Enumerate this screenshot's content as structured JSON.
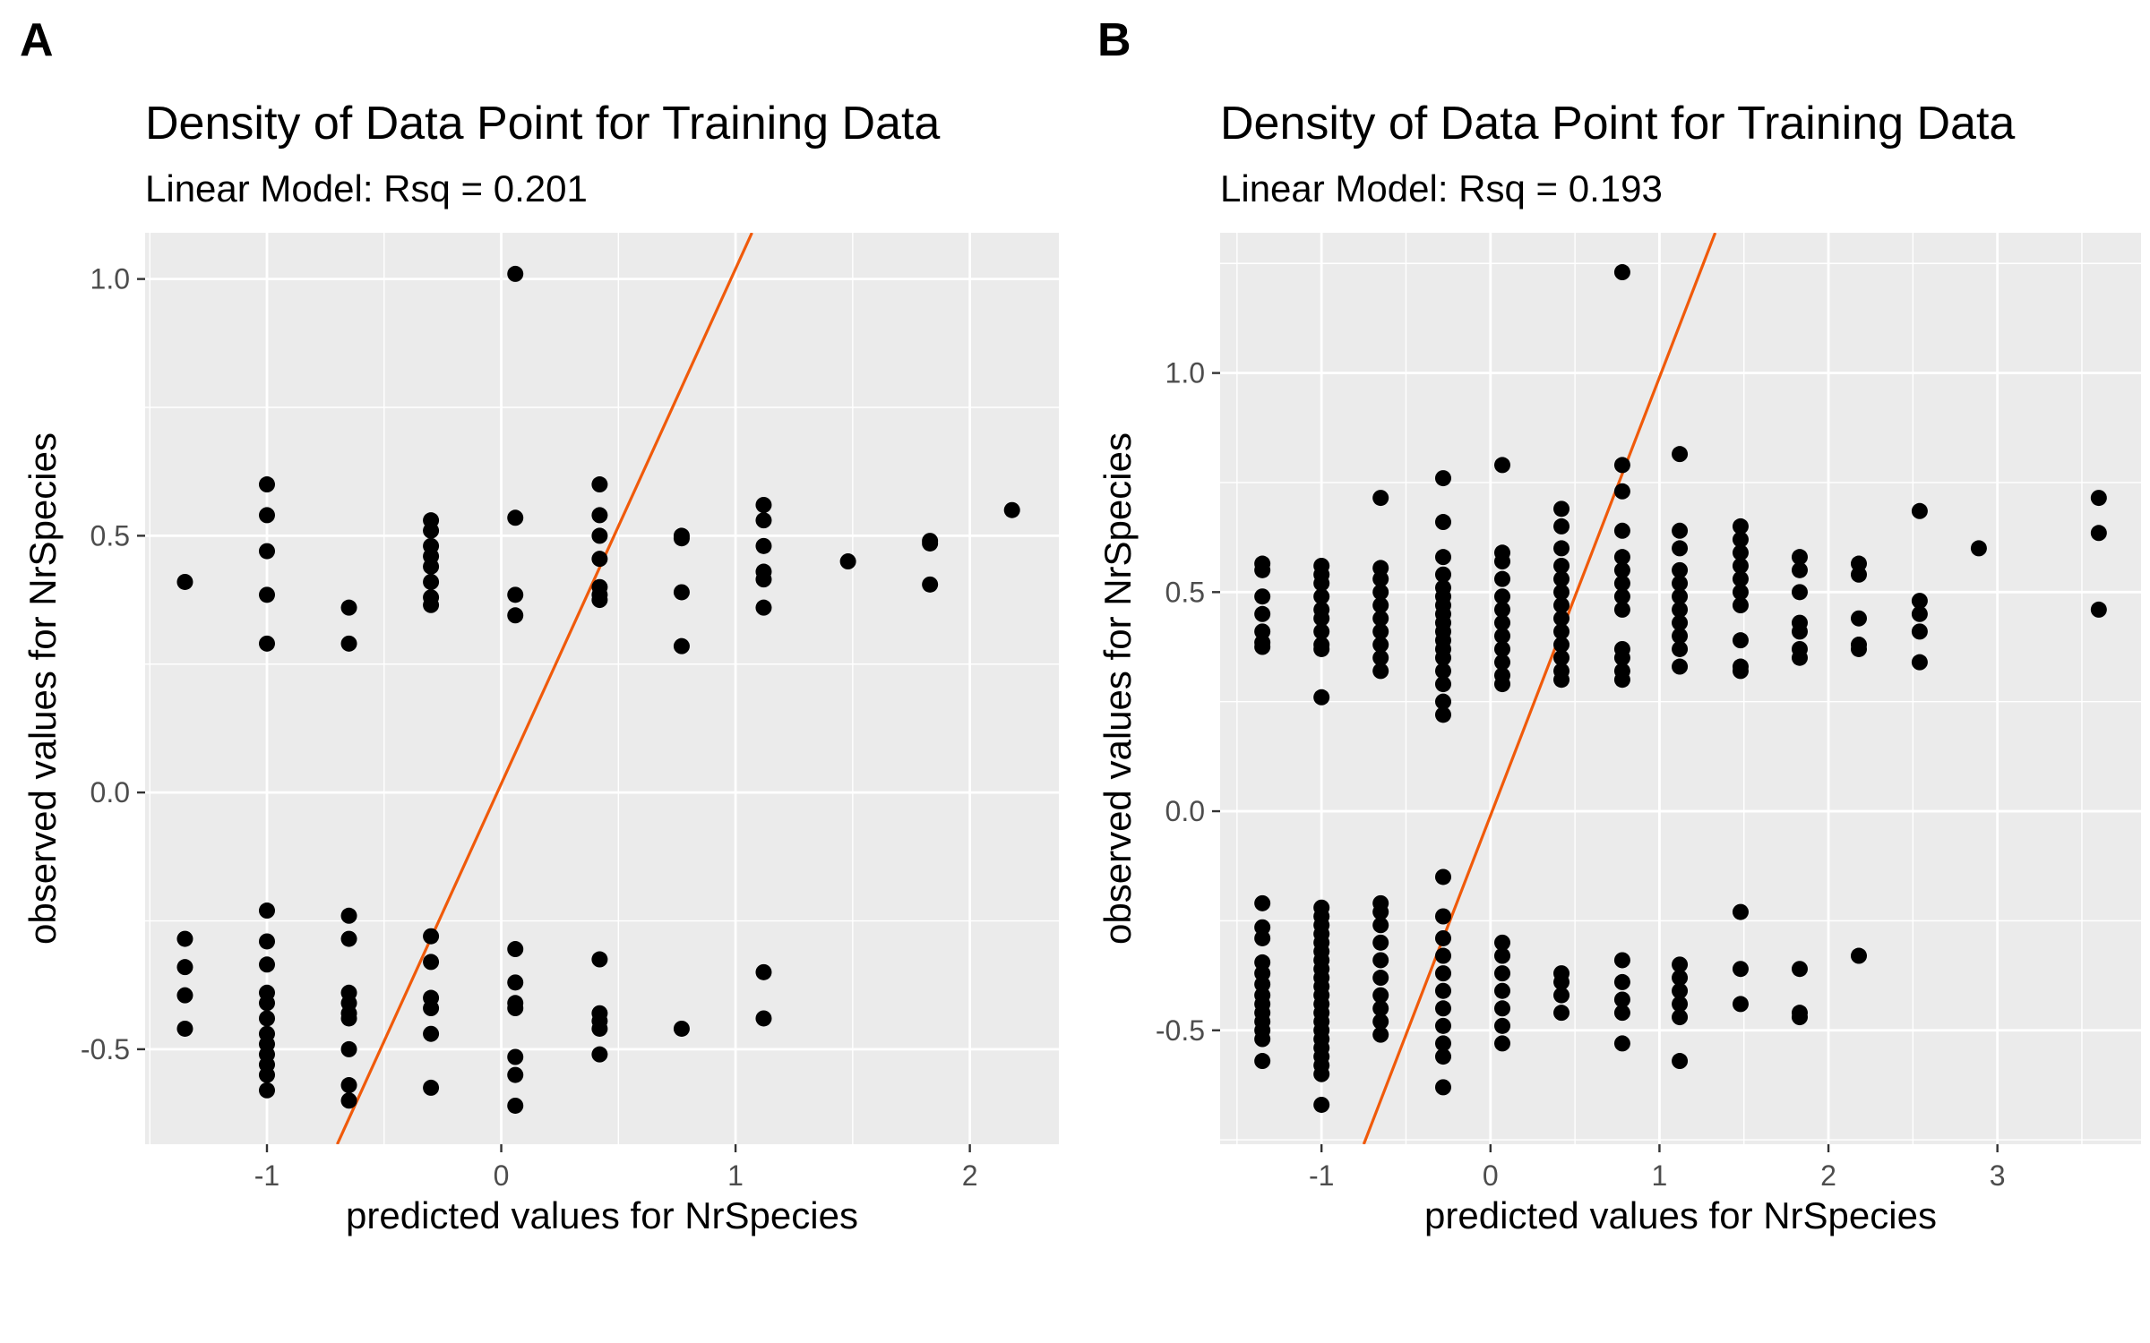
{
  "chart_data": [
    {
      "panel": "A",
      "type": "scatter",
      "title": "Density of Data Point for Training Data",
      "subtitle": "Linear Model: Rsq = 0.201",
      "xlabel": "predicted values for NrSpecies",
      "ylabel": "observed values for NrSpecies",
      "xlim": [
        -1.52,
        2.38
      ],
      "ylim": [
        -0.685,
        1.09
      ],
      "x_ticks": [
        -1,
        0,
        1,
        2
      ],
      "x_tick_labels": [
        "-1",
        "0",
        "1",
        "2"
      ],
      "y_ticks": [
        -0.5,
        0.0,
        0.5,
        1.0
      ],
      "y_tick_labels": [
        "-0.5",
        "0.0",
        "0.5",
        "1.0"
      ],
      "grid": true,
      "fit_line": {
        "color": "#f05a0a",
        "points": [
          [
            -0.7,
            -0.685
          ],
          [
            1.07,
            1.09
          ]
        ]
      },
      "points": [
        [
          -1.35,
          0.41
        ],
        [
          -1.35,
          -0.285
        ],
        [
          -1.35,
          -0.34
        ],
        [
          -1.35,
          -0.395
        ],
        [
          -1.35,
          -0.46
        ],
        [
          -1.0,
          0.6
        ],
        [
          -1.0,
          0.54
        ],
        [
          -1.0,
          0.47
        ],
        [
          -1.0,
          0.385
        ],
        [
          -1.0,
          0.29
        ],
        [
          -1.0,
          -0.23
        ],
        [
          -1.0,
          -0.29
        ],
        [
          -1.0,
          -0.335
        ],
        [
          -1.0,
          -0.39
        ],
        [
          -1.0,
          -0.41
        ],
        [
          -1.0,
          -0.44
        ],
        [
          -1.0,
          -0.47
        ],
        [
          -1.0,
          -0.49
        ],
        [
          -1.0,
          -0.51
        ],
        [
          -1.0,
          -0.53
        ],
        [
          -1.0,
          -0.55
        ],
        [
          -1.0,
          -0.58
        ],
        [
          -0.65,
          0.36
        ],
        [
          -0.65,
          0.29
        ],
        [
          -0.65,
          -0.24
        ],
        [
          -0.65,
          -0.285
        ],
        [
          -0.65,
          -0.39
        ],
        [
          -0.65,
          -0.41
        ],
        [
          -0.65,
          -0.43
        ],
        [
          -0.65,
          -0.44
        ],
        [
          -0.65,
          -0.5
        ],
        [
          -0.65,
          -0.57
        ],
        [
          -0.65,
          -0.6
        ],
        [
          -0.3,
          0.53
        ],
        [
          -0.3,
          0.51
        ],
        [
          -0.3,
          0.48
        ],
        [
          -0.3,
          0.46
        ],
        [
          -0.3,
          0.44
        ],
        [
          -0.3,
          0.41
        ],
        [
          -0.3,
          0.38
        ],
        [
          -0.3,
          0.365
        ],
        [
          -0.3,
          -0.28
        ],
        [
          -0.3,
          -0.33
        ],
        [
          -0.3,
          -0.4
        ],
        [
          -0.3,
          -0.42
        ],
        [
          -0.3,
          -0.47
        ],
        [
          -0.3,
          -0.575
        ],
        [
          0.06,
          1.01
        ],
        [
          0.06,
          0.535
        ],
        [
          0.06,
          0.385
        ],
        [
          0.06,
          0.345
        ],
        [
          0.06,
          -0.305
        ],
        [
          0.06,
          -0.37
        ],
        [
          0.06,
          -0.41
        ],
        [
          0.06,
          -0.42
        ],
        [
          0.06,
          -0.515
        ],
        [
          0.06,
          -0.55
        ],
        [
          0.06,
          -0.61
        ],
        [
          0.42,
          0.6
        ],
        [
          0.42,
          0.54
        ],
        [
          0.42,
          0.5
        ],
        [
          0.42,
          0.455
        ],
        [
          0.42,
          0.4
        ],
        [
          0.42,
          0.385
        ],
        [
          0.42,
          0.375
        ],
        [
          0.42,
          -0.325
        ],
        [
          0.42,
          -0.43
        ],
        [
          0.42,
          -0.445
        ],
        [
          0.42,
          -0.46
        ],
        [
          0.42,
          -0.51
        ],
        [
          0.77,
          0.5
        ],
        [
          0.77,
          0.495
        ],
        [
          0.77,
          0.39
        ],
        [
          0.77,
          0.285
        ],
        [
          0.77,
          -0.46
        ],
        [
          1.12,
          0.56
        ],
        [
          1.12,
          0.53
        ],
        [
          1.12,
          0.48
        ],
        [
          1.12,
          0.43
        ],
        [
          1.12,
          0.415
        ],
        [
          1.12,
          0.36
        ],
        [
          1.12,
          -0.35
        ],
        [
          1.12,
          -0.44
        ],
        [
          1.48,
          0.45
        ],
        [
          1.83,
          0.49
        ],
        [
          1.83,
          0.485
        ],
        [
          1.83,
          0.405
        ],
        [
          2.18,
          0.55
        ]
      ]
    },
    {
      "panel": "B",
      "type": "scatter",
      "title": "Density of Data Point for Training Data",
      "subtitle": "Linear Model: Rsq = 0.193",
      "xlabel": "predicted values for NrSpecies",
      "ylabel": "observed values for NrSpecies",
      "xlim": [
        -1.6,
        3.85
      ],
      "ylim": [
        -0.76,
        1.32
      ],
      "x_ticks": [
        -1,
        0,
        1,
        2,
        3
      ],
      "x_tick_labels": [
        "-1",
        "0",
        "1",
        "2",
        "3"
      ],
      "y_ticks": [
        -0.5,
        0.0,
        0.5,
        1.0
      ],
      "y_tick_labels": [
        "-0.5",
        "0.0",
        "0.5",
        "1.0"
      ],
      "grid": true,
      "fit_line": {
        "color": "#f05a0a",
        "points": [
          [
            -0.75,
            -0.76
          ],
          [
            1.33,
            1.32
          ]
        ]
      },
      "points": [
        [
          -1.35,
          0.565
        ],
        [
          -1.35,
          0.55
        ],
        [
          -1.35,
          0.49
        ],
        [
          -1.35,
          0.45
        ],
        [
          -1.35,
          0.41
        ],
        [
          -1.35,
          0.385
        ],
        [
          -1.35,
          0.375
        ],
        [
          -1.35,
          -0.21
        ],
        [
          -1.35,
          -0.265
        ],
        [
          -1.35,
          -0.29
        ],
        [
          -1.35,
          -0.345
        ],
        [
          -1.35,
          -0.37
        ],
        [
          -1.35,
          -0.395
        ],
        [
          -1.35,
          -0.42
        ],
        [
          -1.35,
          -0.44
        ],
        [
          -1.35,
          -0.46
        ],
        [
          -1.35,
          -0.48
        ],
        [
          -1.35,
          -0.5
        ],
        [
          -1.35,
          -0.52
        ],
        [
          -1.35,
          -0.57
        ],
        [
          -1.0,
          0.56
        ],
        [
          -1.0,
          0.54
        ],
        [
          -1.0,
          0.52
        ],
        [
          -1.0,
          0.49
        ],
        [
          -1.0,
          0.46
        ],
        [
          -1.0,
          0.44
        ],
        [
          -1.0,
          0.41
        ],
        [
          -1.0,
          0.38
        ],
        [
          -1.0,
          0.37
        ],
        [
          -1.0,
          0.26
        ],
        [
          -1.0,
          -0.22
        ],
        [
          -1.0,
          -0.24
        ],
        [
          -1.0,
          -0.26
        ],
        [
          -1.0,
          -0.28
        ],
        [
          -1.0,
          -0.3
        ],
        [
          -1.0,
          -0.32
        ],
        [
          -1.0,
          -0.34
        ],
        [
          -1.0,
          -0.36
        ],
        [
          -1.0,
          -0.38
        ],
        [
          -1.0,
          -0.4
        ],
        [
          -1.0,
          -0.42
        ],
        [
          -1.0,
          -0.44
        ],
        [
          -1.0,
          -0.46
        ],
        [
          -1.0,
          -0.48
        ],
        [
          -1.0,
          -0.5
        ],
        [
          -1.0,
          -0.52
        ],
        [
          -1.0,
          -0.54
        ],
        [
          -1.0,
          -0.56
        ],
        [
          -1.0,
          -0.58
        ],
        [
          -1.0,
          -0.6
        ],
        [
          -1.0,
          -0.67
        ],
        [
          -0.65,
          0.715
        ],
        [
          -0.65,
          0.555
        ],
        [
          -0.65,
          0.53
        ],
        [
          -0.65,
          0.5
        ],
        [
          -0.65,
          0.47
        ],
        [
          -0.65,
          0.44
        ],
        [
          -0.65,
          0.41
        ],
        [
          -0.65,
          0.38
        ],
        [
          -0.65,
          0.35
        ],
        [
          -0.65,
          0.32
        ],
        [
          -0.65,
          -0.21
        ],
        [
          -0.65,
          -0.23
        ],
        [
          -0.65,
          -0.26
        ],
        [
          -0.65,
          -0.3
        ],
        [
          -0.65,
          -0.34
        ],
        [
          -0.65,
          -0.38
        ],
        [
          -0.65,
          -0.42
        ],
        [
          -0.65,
          -0.45
        ],
        [
          -0.65,
          -0.48
        ],
        [
          -0.65,
          -0.51
        ],
        [
          -0.28,
          0.76
        ],
        [
          -0.28,
          0.66
        ],
        [
          -0.28,
          0.58
        ],
        [
          -0.28,
          0.54
        ],
        [
          -0.28,
          0.51
        ],
        [
          -0.28,
          0.49
        ],
        [
          -0.28,
          0.47
        ],
        [
          -0.28,
          0.45
        ],
        [
          -0.28,
          0.43
        ],
        [
          -0.28,
          0.41
        ],
        [
          -0.28,
          0.39
        ],
        [
          -0.28,
          0.37
        ],
        [
          -0.28,
          0.35
        ],
        [
          -0.28,
          0.32
        ],
        [
          -0.28,
          0.29
        ],
        [
          -0.28,
          0.25
        ],
        [
          -0.28,
          0.22
        ],
        [
          -0.28,
          -0.15
        ],
        [
          -0.28,
          -0.24
        ],
        [
          -0.28,
          -0.29
        ],
        [
          -0.28,
          -0.33
        ],
        [
          -0.28,
          -0.37
        ],
        [
          -0.28,
          -0.41
        ],
        [
          -0.28,
          -0.45
        ],
        [
          -0.28,
          -0.49
        ],
        [
          -0.28,
          -0.53
        ],
        [
          -0.28,
          -0.56
        ],
        [
          -0.28,
          -0.63
        ],
        [
          0.07,
          0.79
        ],
        [
          0.07,
          0.59
        ],
        [
          0.07,
          0.57
        ],
        [
          0.07,
          0.53
        ],
        [
          0.07,
          0.49
        ],
        [
          0.07,
          0.46
        ],
        [
          0.07,
          0.43
        ],
        [
          0.07,
          0.4
        ],
        [
          0.07,
          0.37
        ],
        [
          0.07,
          0.34
        ],
        [
          0.07,
          0.31
        ],
        [
          0.07,
          0.29
        ],
        [
          0.07,
          -0.3
        ],
        [
          0.07,
          -0.33
        ],
        [
          0.07,
          -0.37
        ],
        [
          0.07,
          -0.41
        ],
        [
          0.07,
          -0.45
        ],
        [
          0.07,
          -0.49
        ],
        [
          0.07,
          -0.53
        ],
        [
          0.42,
          0.69
        ],
        [
          0.42,
          0.65
        ],
        [
          0.42,
          0.6
        ],
        [
          0.42,
          0.56
        ],
        [
          0.42,
          0.53
        ],
        [
          0.42,
          0.5
        ],
        [
          0.42,
          0.47
        ],
        [
          0.42,
          0.44
        ],
        [
          0.42,
          0.41
        ],
        [
          0.42,
          0.38
        ],
        [
          0.42,
          0.35
        ],
        [
          0.42,
          0.32
        ],
        [
          0.42,
          0.3
        ],
        [
          0.42,
          -0.37
        ],
        [
          0.42,
          -0.39
        ],
        [
          0.42,
          -0.42
        ],
        [
          0.42,
          -0.46
        ],
        [
          0.78,
          1.23
        ],
        [
          0.78,
          0.79
        ],
        [
          0.78,
          0.73
        ],
        [
          0.78,
          0.64
        ],
        [
          0.78,
          0.58
        ],
        [
          0.78,
          0.55
        ],
        [
          0.78,
          0.52
        ],
        [
          0.78,
          0.49
        ],
        [
          0.78,
          0.46
        ],
        [
          0.78,
          0.37
        ],
        [
          0.78,
          0.35
        ],
        [
          0.78,
          0.32
        ],
        [
          0.78,
          0.3
        ],
        [
          0.78,
          -0.34
        ],
        [
          0.78,
          -0.39
        ],
        [
          0.78,
          -0.43
        ],
        [
          0.78,
          -0.46
        ],
        [
          0.78,
          -0.53
        ],
        [
          1.12,
          0.815
        ],
        [
          1.12,
          0.64
        ],
        [
          1.12,
          0.6
        ],
        [
          1.12,
          0.55
        ],
        [
          1.12,
          0.52
        ],
        [
          1.12,
          0.49
        ],
        [
          1.12,
          0.46
        ],
        [
          1.12,
          0.43
        ],
        [
          1.12,
          0.4
        ],
        [
          1.12,
          0.37
        ],
        [
          1.12,
          0.33
        ],
        [
          1.12,
          -0.35
        ],
        [
          1.12,
          -0.38
        ],
        [
          1.12,
          -0.41
        ],
        [
          1.12,
          -0.44
        ],
        [
          1.12,
          -0.47
        ],
        [
          1.12,
          -0.57
        ],
        [
          1.48,
          0.65
        ],
        [
          1.48,
          0.62
        ],
        [
          1.48,
          0.59
        ],
        [
          1.48,
          0.56
        ],
        [
          1.48,
          0.53
        ],
        [
          1.48,
          0.5
        ],
        [
          1.48,
          0.47
        ],
        [
          1.48,
          0.39
        ],
        [
          1.48,
          0.33
        ],
        [
          1.48,
          0.32
        ],
        [
          1.48,
          -0.23
        ],
        [
          1.48,
          -0.36
        ],
        [
          1.48,
          -0.44
        ],
        [
          1.83,
          0.58
        ],
        [
          1.83,
          0.55
        ],
        [
          1.83,
          0.5
        ],
        [
          1.83,
          0.43
        ],
        [
          1.83,
          0.41
        ],
        [
          1.83,
          0.37
        ],
        [
          1.83,
          0.35
        ],
        [
          1.83,
          -0.36
        ],
        [
          1.83,
          -0.46
        ],
        [
          1.83,
          -0.47
        ],
        [
          2.18,
          0.565
        ],
        [
          2.18,
          0.54
        ],
        [
          2.18,
          0.44
        ],
        [
          2.18,
          0.38
        ],
        [
          2.18,
          0.37
        ],
        [
          2.18,
          -0.33
        ],
        [
          2.54,
          0.685
        ],
        [
          2.54,
          0.48
        ],
        [
          2.54,
          0.45
        ],
        [
          2.54,
          0.41
        ],
        [
          2.54,
          0.34
        ],
        [
          2.89,
          0.6
        ],
        [
          3.6,
          0.715
        ],
        [
          3.6,
          0.635
        ],
        [
          3.6,
          0.46
        ]
      ]
    }
  ]
}
